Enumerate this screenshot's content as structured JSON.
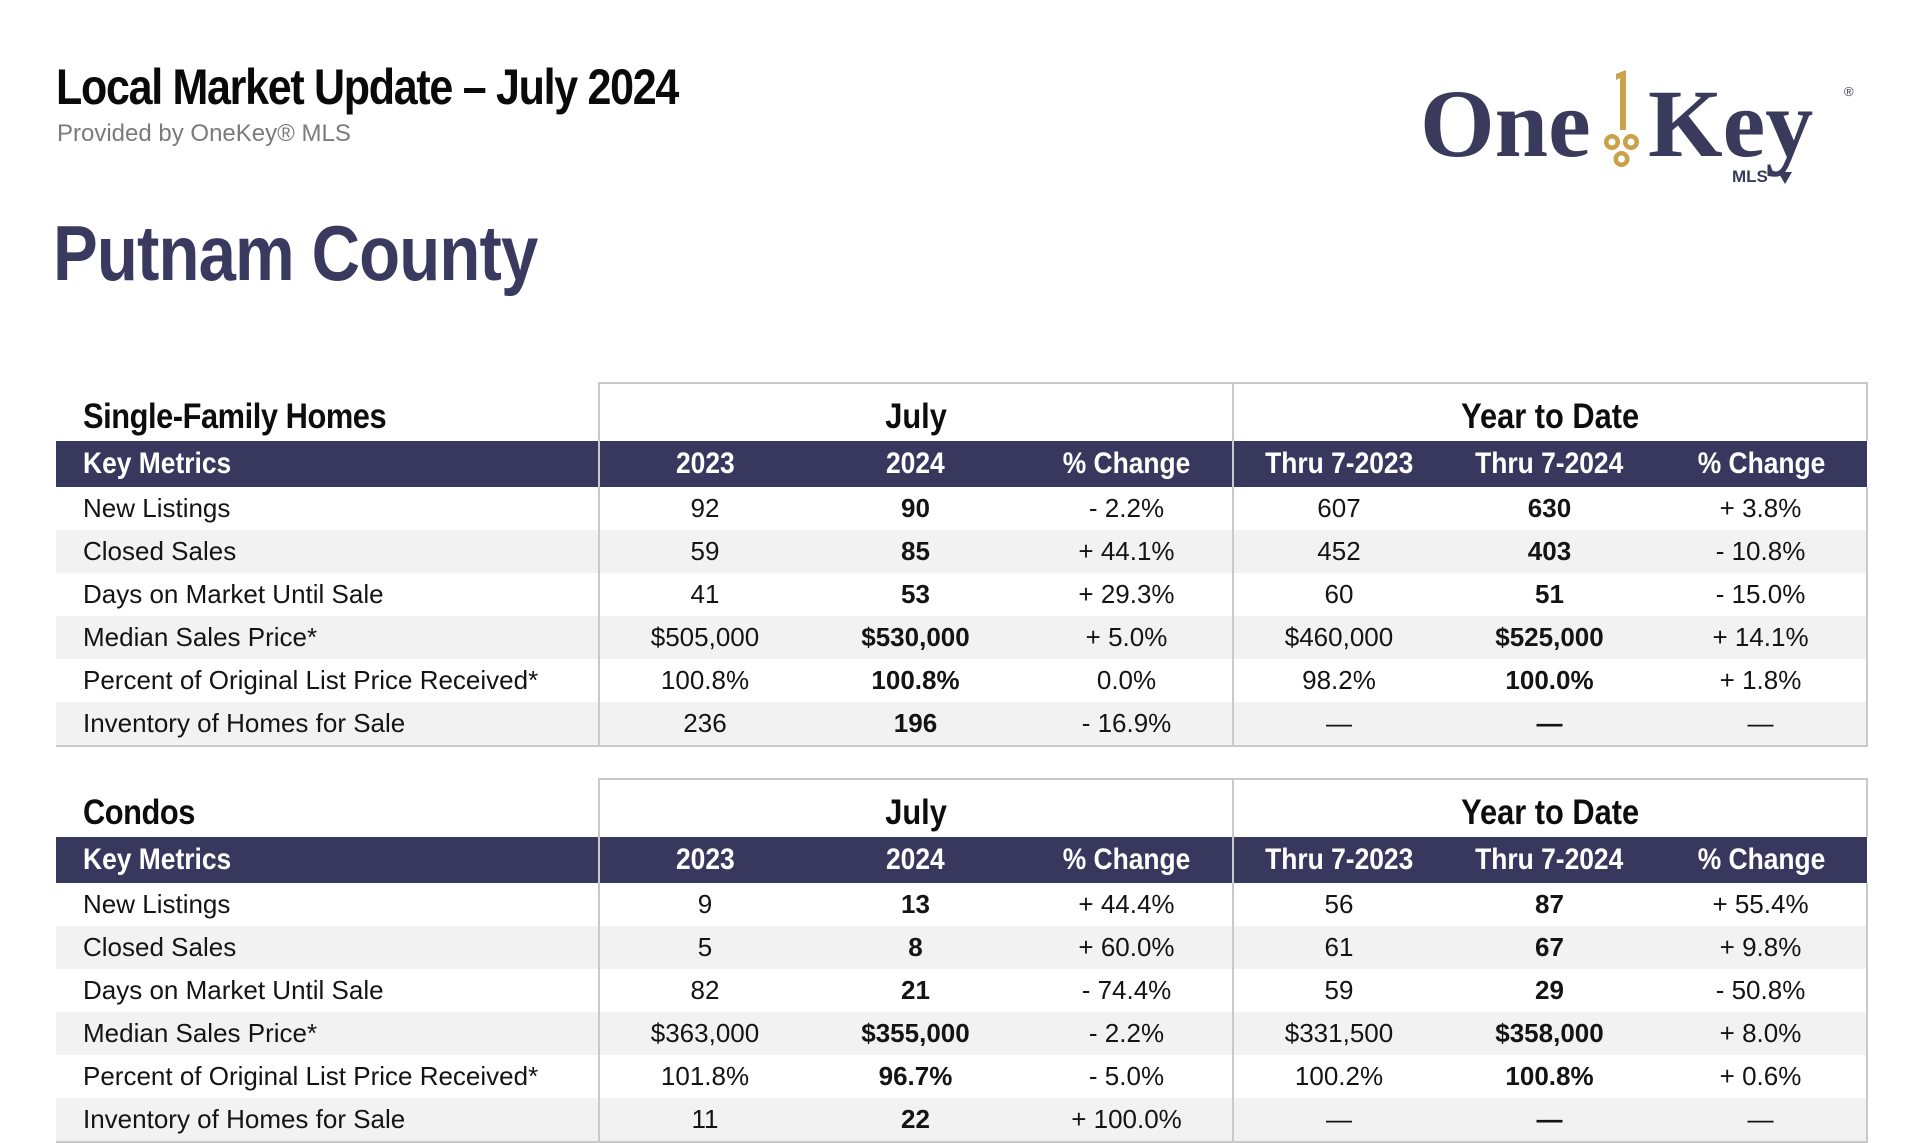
{
  "header": {
    "title": "Local Market Update – July 2024",
    "subtitle": "Provided by OneKey® MLS",
    "logo_text": "OneKey MLS"
  },
  "county": "Putnam County",
  "labels": {
    "key_metrics": "Key Metrics",
    "july": "July",
    "ytd": "Year to Date",
    "y2023": "2023",
    "y2024": "2024",
    "pct_change": "% Change",
    "thru2023": "Thru 7-2023",
    "thru2024": "Thru 7-2024"
  },
  "tables": [
    {
      "title": "Single-Family Homes",
      "rows": [
        {
          "metric": "New Listings",
          "m2023": "92",
          "m2024": "90",
          "mchg": "- 2.2%",
          "y2023": "607",
          "y2024": "630",
          "ychg": "+ 3.8%"
        },
        {
          "metric": "Closed Sales",
          "m2023": "59",
          "m2024": "85",
          "mchg": "+ 44.1%",
          "y2023": "452",
          "y2024": "403",
          "ychg": "- 10.8%"
        },
        {
          "metric": "Days on Market Until Sale",
          "m2023": "41",
          "m2024": "53",
          "mchg": "+ 29.3%",
          "y2023": "60",
          "y2024": "51",
          "ychg": "- 15.0%"
        },
        {
          "metric": "Median Sales Price*",
          "m2023": "$505,000",
          "m2024": "$530,000",
          "mchg": "+ 5.0%",
          "y2023": "$460,000",
          "y2024": "$525,000",
          "ychg": "+ 14.1%"
        },
        {
          "metric": "Percent of Original List Price Received*",
          "m2023": "100.8%",
          "m2024": "100.8%",
          "mchg": "0.0%",
          "y2023": "98.2%",
          "y2024": "100.0%",
          "ychg": "+ 1.8%"
        },
        {
          "metric": "Inventory of Homes for Sale",
          "m2023": "236",
          "m2024": "196",
          "mchg": "- 16.9%",
          "y2023": "—",
          "y2024": "—",
          "ychg": "—"
        }
      ]
    },
    {
      "title": "Condos",
      "rows": [
        {
          "metric": "New Listings",
          "m2023": "9",
          "m2024": "13",
          "mchg": "+ 44.4%",
          "y2023": "56",
          "y2024": "87",
          "ychg": "+ 55.4%"
        },
        {
          "metric": "Closed Sales",
          "m2023": "5",
          "m2024": "8",
          "mchg": "+ 60.0%",
          "y2023": "61",
          "y2024": "67",
          "ychg": "+ 9.8%"
        },
        {
          "metric": "Days on Market Until Sale",
          "m2023": "82",
          "m2024": "21",
          "mchg": "- 74.4%",
          "y2023": "59",
          "y2024": "29",
          "ychg": "- 50.8%"
        },
        {
          "metric": "Median Sales Price*",
          "m2023": "$363,000",
          "m2024": "$355,000",
          "mchg": "- 2.2%",
          "y2023": "$331,500",
          "y2024": "$358,000",
          "ychg": "+ 8.0%"
        },
        {
          "metric": "Percent of Original List Price Received*",
          "m2023": "101.8%",
          "m2024": "96.7%",
          "mchg": "- 5.0%",
          "y2023": "100.2%",
          "y2024": "100.8%",
          "ychg": "+ 0.6%"
        },
        {
          "metric": "Inventory of Homes for Sale",
          "m2023": "11",
          "m2024": "22",
          "mchg": "+ 100.0%",
          "y2023": "—",
          "y2024": "—",
          "ychg": "—"
        }
      ]
    }
  ],
  "colors": {
    "header_band": "#38375e",
    "county_text": "#3a3960",
    "logo_navy": "#3a3a5c",
    "logo_gold": "#c9a24a",
    "row_alt": "#f2f2f2"
  }
}
